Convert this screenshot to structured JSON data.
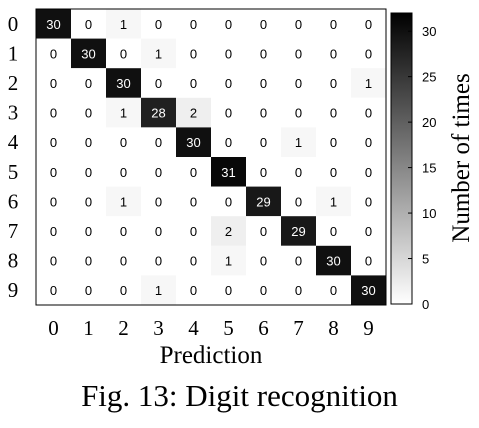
{
  "chart_data": {
    "type": "heatmap",
    "x_labels": [
      "0",
      "1",
      "2",
      "3",
      "4",
      "5",
      "6",
      "7",
      "8",
      "9"
    ],
    "y_labels": [
      "0",
      "1",
      "2",
      "3",
      "4",
      "5",
      "6",
      "7",
      "8",
      "9"
    ],
    "xlabel": "Prediction",
    "colorbar_label": "Number of times",
    "colorbar_ticks": [
      0,
      5,
      10,
      15,
      20,
      25,
      30
    ],
    "colorbar_range": [
      0,
      32
    ],
    "colormap": [
      "#ffffff",
      "#000000"
    ],
    "matrix": [
      [
        30,
        0,
        1,
        0,
        0,
        0,
        0,
        0,
        0,
        0
      ],
      [
        0,
        30,
        0,
        1,
        0,
        0,
        0,
        0,
        0,
        0
      ],
      [
        0,
        0,
        30,
        0,
        0,
        0,
        0,
        0,
        0,
        1
      ],
      [
        0,
        0,
        1,
        28,
        2,
        0,
        0,
        0,
        0,
        0
      ],
      [
        0,
        0,
        0,
        0,
        30,
        0,
        0,
        1,
        0,
        0
      ],
      [
        0,
        0,
        0,
        0,
        0,
        31,
        0,
        0,
        0,
        0
      ],
      [
        0,
        0,
        1,
        0,
        0,
        0,
        29,
        0,
        1,
        0
      ],
      [
        0,
        0,
        0,
        0,
        0,
        2,
        0,
        29,
        0,
        0
      ],
      [
        0,
        0,
        0,
        0,
        0,
        1,
        0,
        0,
        30,
        0
      ],
      [
        0,
        0,
        0,
        1,
        0,
        0,
        0,
        0,
        0,
        30
      ]
    ]
  },
  "caption": "Fig. 13: Digit recognition"
}
